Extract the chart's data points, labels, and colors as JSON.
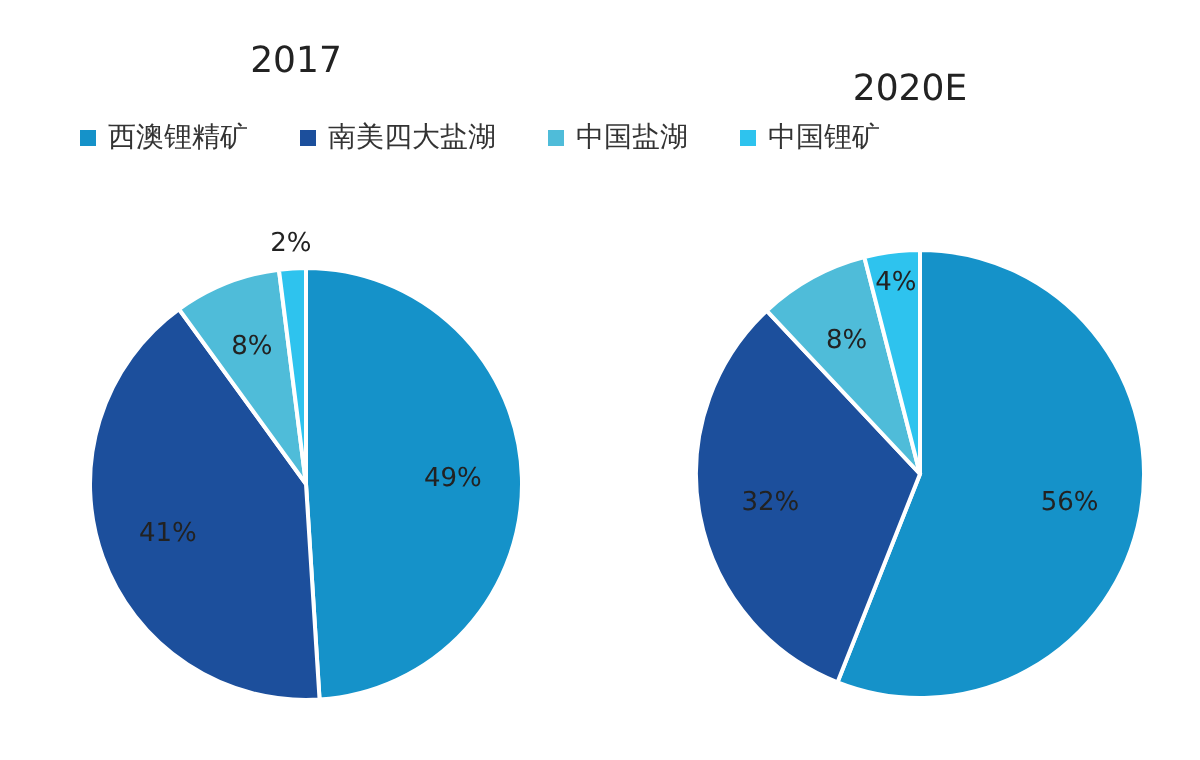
{
  "chart_data": [
    {
      "type": "pie",
      "title": "2017",
      "categories": [
        "西澳锂精矿",
        "南美四大盐湖",
        "中国盐湖",
        "中国锂矿"
      ],
      "values": [
        49,
        41,
        8,
        2
      ],
      "value_labels": [
        "49%",
        "41%",
        "8%",
        "2%"
      ],
      "colors": [
        "#1592c9",
        "#1c4f9c",
        "#4fbcd9",
        "#2ec3ee"
      ],
      "legend": "top"
    },
    {
      "type": "pie",
      "title": "2020E",
      "categories": [
        null,
        null,
        null,
        null
      ],
      "values": [
        56,
        32,
        8,
        4
      ],
      "value_labels": [
        "56%",
        "32%",
        "8%",
        "4%"
      ],
      "colors": [
        "#1592c9",
        "#1c4f9c",
        "#4fbcd9",
        "#2ec3ee"
      ]
    }
  ]
}
